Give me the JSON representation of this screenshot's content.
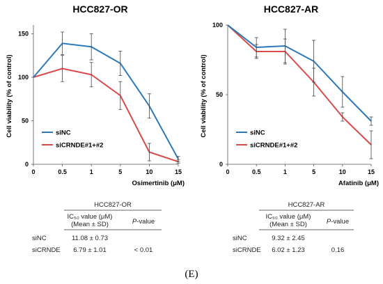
{
  "chart_data": [
    {
      "type": "line",
      "title": "HCC827-OR",
      "xlabel": "Osimertinib (μM)",
      "ylabel": "Cell viability (% of control)",
      "categories": [
        "0",
        "0.5",
        "1",
        "5",
        "10",
        "15"
      ],
      "ylim": [
        0,
        160
      ],
      "yticks": [
        0,
        50,
        100,
        150
      ],
      "legend_position": "left-middle",
      "series": [
        {
          "name": "siNC",
          "color": "#2a78b8",
          "values": [
            100,
            139,
            135,
            116,
            67,
            6
          ],
          "errors": [
            0,
            13,
            15,
            14,
            14,
            3
          ]
        },
        {
          "name": "siCRNDE#1+#2",
          "color": "#d94a4a",
          "values": [
            100,
            110,
            103,
            79,
            14,
            3
          ],
          "errors": [
            0,
            15,
            14,
            16,
            10,
            2
          ]
        }
      ]
    },
    {
      "type": "line",
      "title": "HCC827-AR",
      "xlabel": "Afatinib (μM)",
      "ylabel": "Cell viability (% of control)",
      "categories": [
        "0",
        "0.5",
        "1",
        "5",
        "10",
        "15"
      ],
      "ylim": [
        0,
        100
      ],
      "yticks": [
        0,
        50,
        100
      ],
      "legend_position": "left-middle",
      "series": [
        {
          "name": "siNC",
          "color": "#2a78b8",
          "values": [
            100,
            84,
            85,
            74,
            52,
            31
          ],
          "errors": [
            0,
            7,
            12,
            15,
            11,
            3
          ]
        },
        {
          "name": "siCRNDE#1+#2",
          "color": "#d94a4a",
          "values": [
            100,
            81,
            81,
            59,
            34,
            14
          ],
          "errors": [
            0,
            5,
            9,
            10,
            3,
            10
          ]
        }
      ]
    }
  ],
  "tables": [
    {
      "title": "HCC827-OR",
      "header_ic50_line1": "IC₅₀ value (μM)",
      "header_ic50_line2": "(Mean ± SD)",
      "header_p": "P-value",
      "rows": [
        {
          "name": "siNC",
          "ic50": "11.08 ± 0.73",
          "p": ""
        },
        {
          "name": "siCRNDE",
          "ic50": "6.79 ± 1.01",
          "p": "< 0.01"
        }
      ]
    },
    {
      "title": "HCC827-AR",
      "header_ic50_line1": "IC₅₀ value (μM)",
      "header_ic50_line2": "(Mean ± SD)",
      "header_p": "P-value",
      "rows": [
        {
          "name": "siNC",
          "ic50": "9.32 ± 2.45",
          "p": ""
        },
        {
          "name": "siCRNDE",
          "ic50": "6.02 ± 1.23",
          "p": "0.16"
        }
      ]
    }
  ],
  "panel_label": "(E)"
}
